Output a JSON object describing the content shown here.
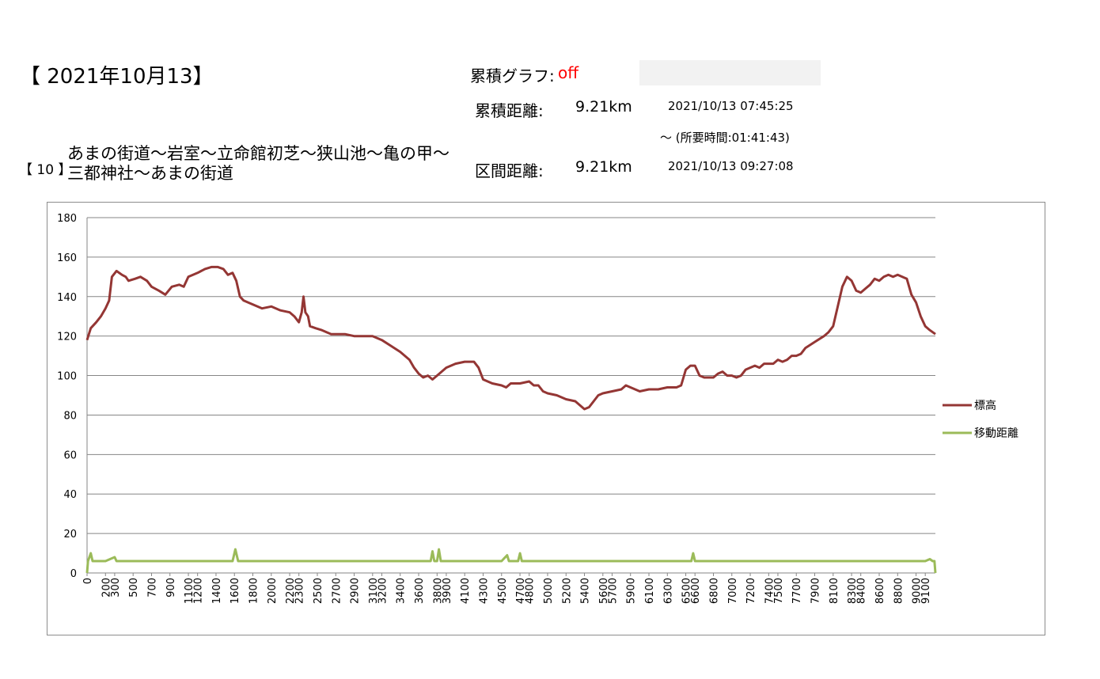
{
  "header": {
    "date_title": "【 2021年10月13】",
    "cum_graph_label": "累積グラフ:",
    "cum_graph_value": "off",
    "cum_distance_label": "累積距離:",
    "cum_distance_value": "9.21km",
    "section_distance_label": "区間距離:",
    "section_distance_value": "9.21km",
    "start_time": "2021/10/13 07:45:25",
    "duration": "～ (所要時間:01:41:43)",
    "end_time": "2021/10/13 09:27:08",
    "route_number": "【 10 】",
    "route_text": "あまの街道～岩室～立命館初芝～狭山池～亀の甲～三都神社～あまの街道"
  },
  "colors": {
    "elevation": "#943634",
    "distance": "#9bbb59",
    "cum_graph_value": "#ff0000",
    "grid": "#868686"
  },
  "chart_data": {
    "type": "line",
    "x_ticks": [
      0,
      200,
      300,
      500,
      700,
      900,
      1100,
      1200,
      1400,
      1600,
      1800,
      2000,
      2200,
      2300,
      2500,
      2700,
      2900,
      3100,
      3200,
      3400,
      3600,
      3800,
      3900,
      4100,
      4300,
      4500,
      4700,
      4800,
      5000,
      5200,
      5400,
      5600,
      5700,
      5900,
      6100,
      6300,
      6500,
      6600,
      6800,
      7000,
      7200,
      7400,
      7500,
      7700,
      7900,
      8100,
      8300,
      8400,
      8600,
      8800,
      9000,
      9100
    ],
    "xlim": [
      0,
      9210
    ],
    "ylim": [
      0,
      180
    ],
    "y_ticks": [
      0,
      20,
      40,
      60,
      80,
      100,
      120,
      140,
      160,
      180
    ],
    "grid": true,
    "legend_position": "right",
    "series": [
      {
        "name": "標高",
        "color": "#943634",
        "points": [
          [
            0,
            118
          ],
          [
            40,
            124
          ],
          [
            100,
            127
          ],
          [
            150,
            130
          ],
          [
            200,
            134
          ],
          [
            240,
            138
          ],
          [
            270,
            150
          ],
          [
            320,
            153
          ],
          [
            380,
            151
          ],
          [
            420,
            150
          ],
          [
            450,
            148
          ],
          [
            520,
            149
          ],
          [
            580,
            150
          ],
          [
            650,
            148
          ],
          [
            700,
            145
          ],
          [
            780,
            143
          ],
          [
            850,
            141
          ],
          [
            920,
            145
          ],
          [
            1000,
            146
          ],
          [
            1050,
            145
          ],
          [
            1100,
            150
          ],
          [
            1200,
            152
          ],
          [
            1280,
            154
          ],
          [
            1350,
            155
          ],
          [
            1420,
            155
          ],
          [
            1480,
            154
          ],
          [
            1530,
            151
          ],
          [
            1580,
            152
          ],
          [
            1620,
            148
          ],
          [
            1660,
            140
          ],
          [
            1700,
            138
          ],
          [
            1800,
            136
          ],
          [
            1900,
            134
          ],
          [
            2000,
            135
          ],
          [
            2100,
            133
          ],
          [
            2200,
            132
          ],
          [
            2250,
            130
          ],
          [
            2300,
            127
          ],
          [
            2330,
            132
          ],
          [
            2350,
            140
          ],
          [
            2370,
            132
          ],
          [
            2400,
            130
          ],
          [
            2420,
            125
          ],
          [
            2480,
            124
          ],
          [
            2550,
            123
          ],
          [
            2650,
            121
          ],
          [
            2800,
            121
          ],
          [
            2900,
            120
          ],
          [
            3000,
            120
          ],
          [
            3100,
            120
          ],
          [
            3200,
            118
          ],
          [
            3300,
            115
          ],
          [
            3400,
            112
          ],
          [
            3500,
            108
          ],
          [
            3550,
            104
          ],
          [
            3600,
            101
          ],
          [
            3650,
            99
          ],
          [
            3700,
            100
          ],
          [
            3750,
            98
          ],
          [
            3800,
            100
          ],
          [
            3850,
            102
          ],
          [
            3900,
            104
          ],
          [
            4000,
            106
          ],
          [
            4100,
            107
          ],
          [
            4200,
            107
          ],
          [
            4250,
            104
          ],
          [
            4300,
            98
          ],
          [
            4400,
            96
          ],
          [
            4500,
            95
          ],
          [
            4550,
            94
          ],
          [
            4600,
            96
          ],
          [
            4700,
            96
          ],
          [
            4800,
            97
          ],
          [
            4850,
            95
          ],
          [
            4900,
            95
          ],
          [
            4950,
            92
          ],
          [
            5000,
            91
          ],
          [
            5100,
            90
          ],
          [
            5200,
            88
          ],
          [
            5300,
            87
          ],
          [
            5350,
            85
          ],
          [
            5400,
            83
          ],
          [
            5450,
            84
          ],
          [
            5500,
            87
          ],
          [
            5550,
            90
          ],
          [
            5600,
            91
          ],
          [
            5700,
            92
          ],
          [
            5800,
            93
          ],
          [
            5850,
            95
          ],
          [
            5900,
            94
          ],
          [
            6000,
            92
          ],
          [
            6100,
            93
          ],
          [
            6200,
            93
          ],
          [
            6300,
            94
          ],
          [
            6400,
            94
          ],
          [
            6450,
            95
          ],
          [
            6500,
            103
          ],
          [
            6550,
            105
          ],
          [
            6600,
            105
          ],
          [
            6650,
            100
          ],
          [
            6700,
            99
          ],
          [
            6800,
            99
          ],
          [
            6850,
            101
          ],
          [
            6900,
            102
          ],
          [
            6950,
            100
          ],
          [
            7000,
            100
          ],
          [
            7050,
            99
          ],
          [
            7100,
            100
          ],
          [
            7150,
            103
          ],
          [
            7200,
            104
          ],
          [
            7250,
            105
          ],
          [
            7300,
            104
          ],
          [
            7350,
            106
          ],
          [
            7400,
            106
          ],
          [
            7450,
            106
          ],
          [
            7500,
            108
          ],
          [
            7550,
            107
          ],
          [
            7600,
            108
          ],
          [
            7650,
            110
          ],
          [
            7700,
            110
          ],
          [
            7750,
            111
          ],
          [
            7800,
            114
          ],
          [
            7900,
            117
          ],
          [
            8000,
            120
          ],
          [
            8050,
            122
          ],
          [
            8100,
            125
          ],
          [
            8150,
            135
          ],
          [
            8200,
            145
          ],
          [
            8250,
            150
          ],
          [
            8300,
            148
          ],
          [
            8350,
            143
          ],
          [
            8400,
            142
          ],
          [
            8450,
            144
          ],
          [
            8500,
            146
          ],
          [
            8550,
            149
          ],
          [
            8600,
            148
          ],
          [
            8650,
            150
          ],
          [
            8700,
            151
          ],
          [
            8750,
            150
          ],
          [
            8800,
            151
          ],
          [
            8850,
            150
          ],
          [
            8900,
            149
          ],
          [
            8950,
            141
          ],
          [
            9000,
            137
          ],
          [
            9050,
            130
          ],
          [
            9100,
            125
          ],
          [
            9150,
            123
          ],
          [
            9210,
            121
          ]
        ]
      },
      {
        "name": "移動距離",
        "color": "#9bbb59",
        "points": [
          [
            0,
            0
          ],
          [
            10,
            6
          ],
          [
            40,
            10
          ],
          [
            60,
            6
          ],
          [
            200,
            6
          ],
          [
            300,
            8
          ],
          [
            320,
            6
          ],
          [
            500,
            6
          ],
          [
            600,
            6
          ],
          [
            800,
            6
          ],
          [
            1000,
            6
          ],
          [
            1200,
            6
          ],
          [
            1400,
            6
          ],
          [
            1580,
            6
          ],
          [
            1610,
            12
          ],
          [
            1640,
            6
          ],
          [
            1800,
            6
          ],
          [
            2000,
            6
          ],
          [
            2200,
            6
          ],
          [
            2400,
            6
          ],
          [
            2600,
            6
          ],
          [
            2800,
            6
          ],
          [
            3000,
            6
          ],
          [
            3200,
            6
          ],
          [
            3400,
            6
          ],
          [
            3600,
            6
          ],
          [
            3730,
            6
          ],
          [
            3750,
            11
          ],
          [
            3770,
            6
          ],
          [
            3800,
            6
          ],
          [
            3820,
            12
          ],
          [
            3840,
            6
          ],
          [
            3900,
            6
          ],
          [
            4100,
            6
          ],
          [
            4300,
            6
          ],
          [
            4500,
            6
          ],
          [
            4560,
            9
          ],
          [
            4580,
            6
          ],
          [
            4680,
            6
          ],
          [
            4700,
            10
          ],
          [
            4720,
            6
          ],
          [
            4900,
            6
          ],
          [
            5000,
            6
          ],
          [
            5200,
            6
          ],
          [
            5400,
            6
          ],
          [
            5600,
            6
          ],
          [
            5800,
            6
          ],
          [
            6000,
            6
          ],
          [
            6200,
            6
          ],
          [
            6400,
            6
          ],
          [
            6560,
            6
          ],
          [
            6580,
            10
          ],
          [
            6600,
            6
          ],
          [
            6800,
            6
          ],
          [
            7000,
            6
          ],
          [
            7200,
            6
          ],
          [
            7400,
            6
          ],
          [
            7600,
            6
          ],
          [
            7800,
            6
          ],
          [
            8000,
            6
          ],
          [
            8200,
            6
          ],
          [
            8400,
            6
          ],
          [
            8600,
            6
          ],
          [
            8800,
            6
          ],
          [
            9000,
            6
          ],
          [
            9100,
            6
          ],
          [
            9150,
            7
          ],
          [
            9180,
            6
          ],
          [
            9200,
            6
          ],
          [
            9210,
            0
          ]
        ]
      }
    ]
  }
}
